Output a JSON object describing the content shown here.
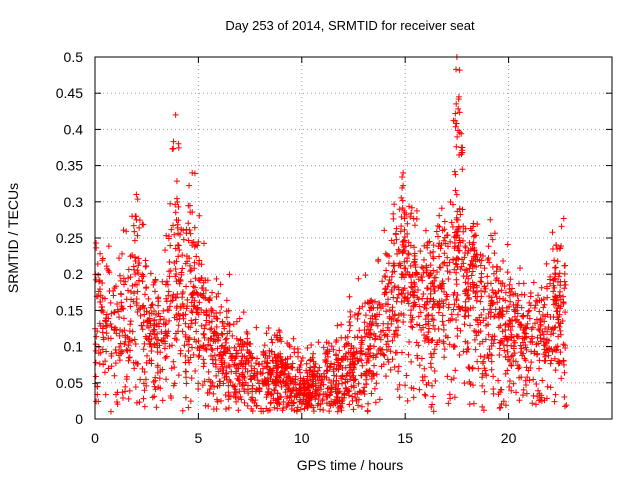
{
  "chart_data": {
    "type": "scatter",
    "title": "Day 253 of 2014, SRMTID for receiver seat",
    "xlabel": "GPS time / hours",
    "ylabel": "SRMTID / TECUs",
    "xlim": [
      0,
      25
    ],
    "ylim": [
      0,
      0.5
    ],
    "x_ticks": [
      0,
      5,
      10,
      15,
      20
    ],
    "x_tick_labels": [
      "0",
      "5",
      "10",
      "15",
      "20"
    ],
    "y_ticks": [
      0,
      0.05,
      0.1,
      0.15,
      0.2,
      0.25,
      0.3,
      0.35,
      0.4,
      0.45,
      0.5
    ],
    "y_tick_labels": [
      "0",
      "0.05",
      "0.1",
      "0.15",
      "0.2",
      "0.25",
      "0.3",
      "0.35",
      "0.4",
      "0.45",
      "0.5"
    ],
    "grid": true,
    "marker": "+",
    "marker_color": "#ff0000",
    "series": [
      {
        "name": "SRMTID",
        "x_range": [
          0,
          22.8
        ],
        "profile_description_hours": [
          0,
          1,
          2,
          3,
          4,
          5,
          6,
          7,
          8,
          9,
          10,
          11,
          12,
          13,
          14,
          15,
          16,
          17,
          17.6,
          18,
          19,
          20,
          21,
          22,
          22.8
        ],
        "typical_values": [
          0.14,
          0.13,
          0.15,
          0.11,
          0.17,
          0.15,
          0.09,
          0.07,
          0.06,
          0.06,
          0.04,
          0.05,
          0.06,
          0.09,
          0.13,
          0.2,
          0.15,
          0.2,
          0.22,
          0.18,
          0.14,
          0.12,
          0.1,
          0.12,
          0.15
        ],
        "peaks": [
          {
            "x": 2.0,
            "y": 0.31
          },
          {
            "x": 3.9,
            "y": 0.42
          },
          {
            "x": 4.7,
            "y": 0.34
          },
          {
            "x": 14.9,
            "y": 0.34
          },
          {
            "x": 17.5,
            "y": 0.5
          },
          {
            "x": 17.6,
            "y": 0.445
          },
          {
            "x": 18.3,
            "y": 0.27
          },
          {
            "x": 22.3,
            "y": 0.24
          }
        ]
      }
    ]
  }
}
